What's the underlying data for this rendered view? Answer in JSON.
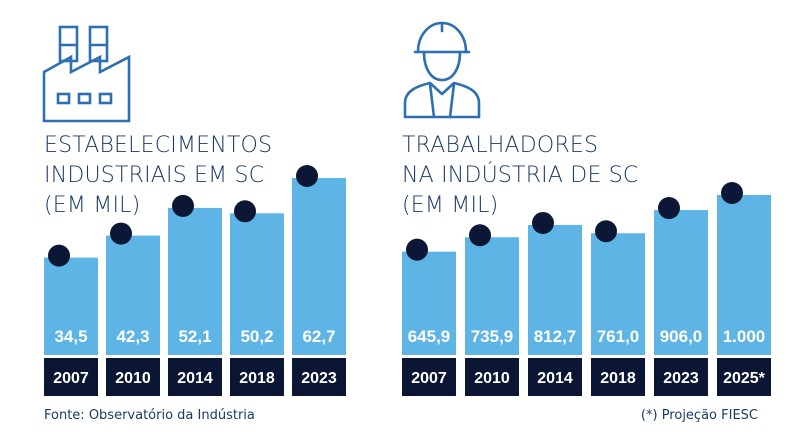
{
  "colors": {
    "bar": "#5db4e5",
    "dark": "#0a1633",
    "text": "#1a3a66",
    "icon": "#2d6fb2",
    "dot": "#0b1735"
  },
  "icons": {
    "left": "factory-icon",
    "right": "worker-hardhat-icon"
  },
  "chart_data": [
    {
      "type": "bar",
      "title": [
        "ESTABELECIMENTOS",
        "INDUSTRIAIS EM SC",
        "(EM MIL)"
      ],
      "categories": [
        "2007",
        "2010",
        "2014",
        "2018",
        "2023"
      ],
      "values": [
        34.5,
        42.3,
        52.1,
        50.2,
        62.7
      ],
      "value_labels": [
        "34,5",
        "42,3",
        "52,1",
        "50,2",
        "62,7"
      ]
    },
    {
      "type": "bar",
      "title": [
        "TRABALHADORES",
        "NA INDÚSTRIA DE SC",
        "(EM MIL)"
      ],
      "categories": [
        "2007",
        "2010",
        "2014",
        "2018",
        "2023",
        "2025*"
      ],
      "values": [
        645.9,
        735.9,
        812.7,
        761.0,
        906.0,
        1000
      ],
      "value_labels": [
        "645,9",
        "735,9",
        "812,7",
        "761,0",
        "906,0",
        "1.000"
      ]
    }
  ],
  "footer": {
    "source": "Fonte: Observatório da Indústria",
    "note": "(*) Projeção FIESC"
  }
}
